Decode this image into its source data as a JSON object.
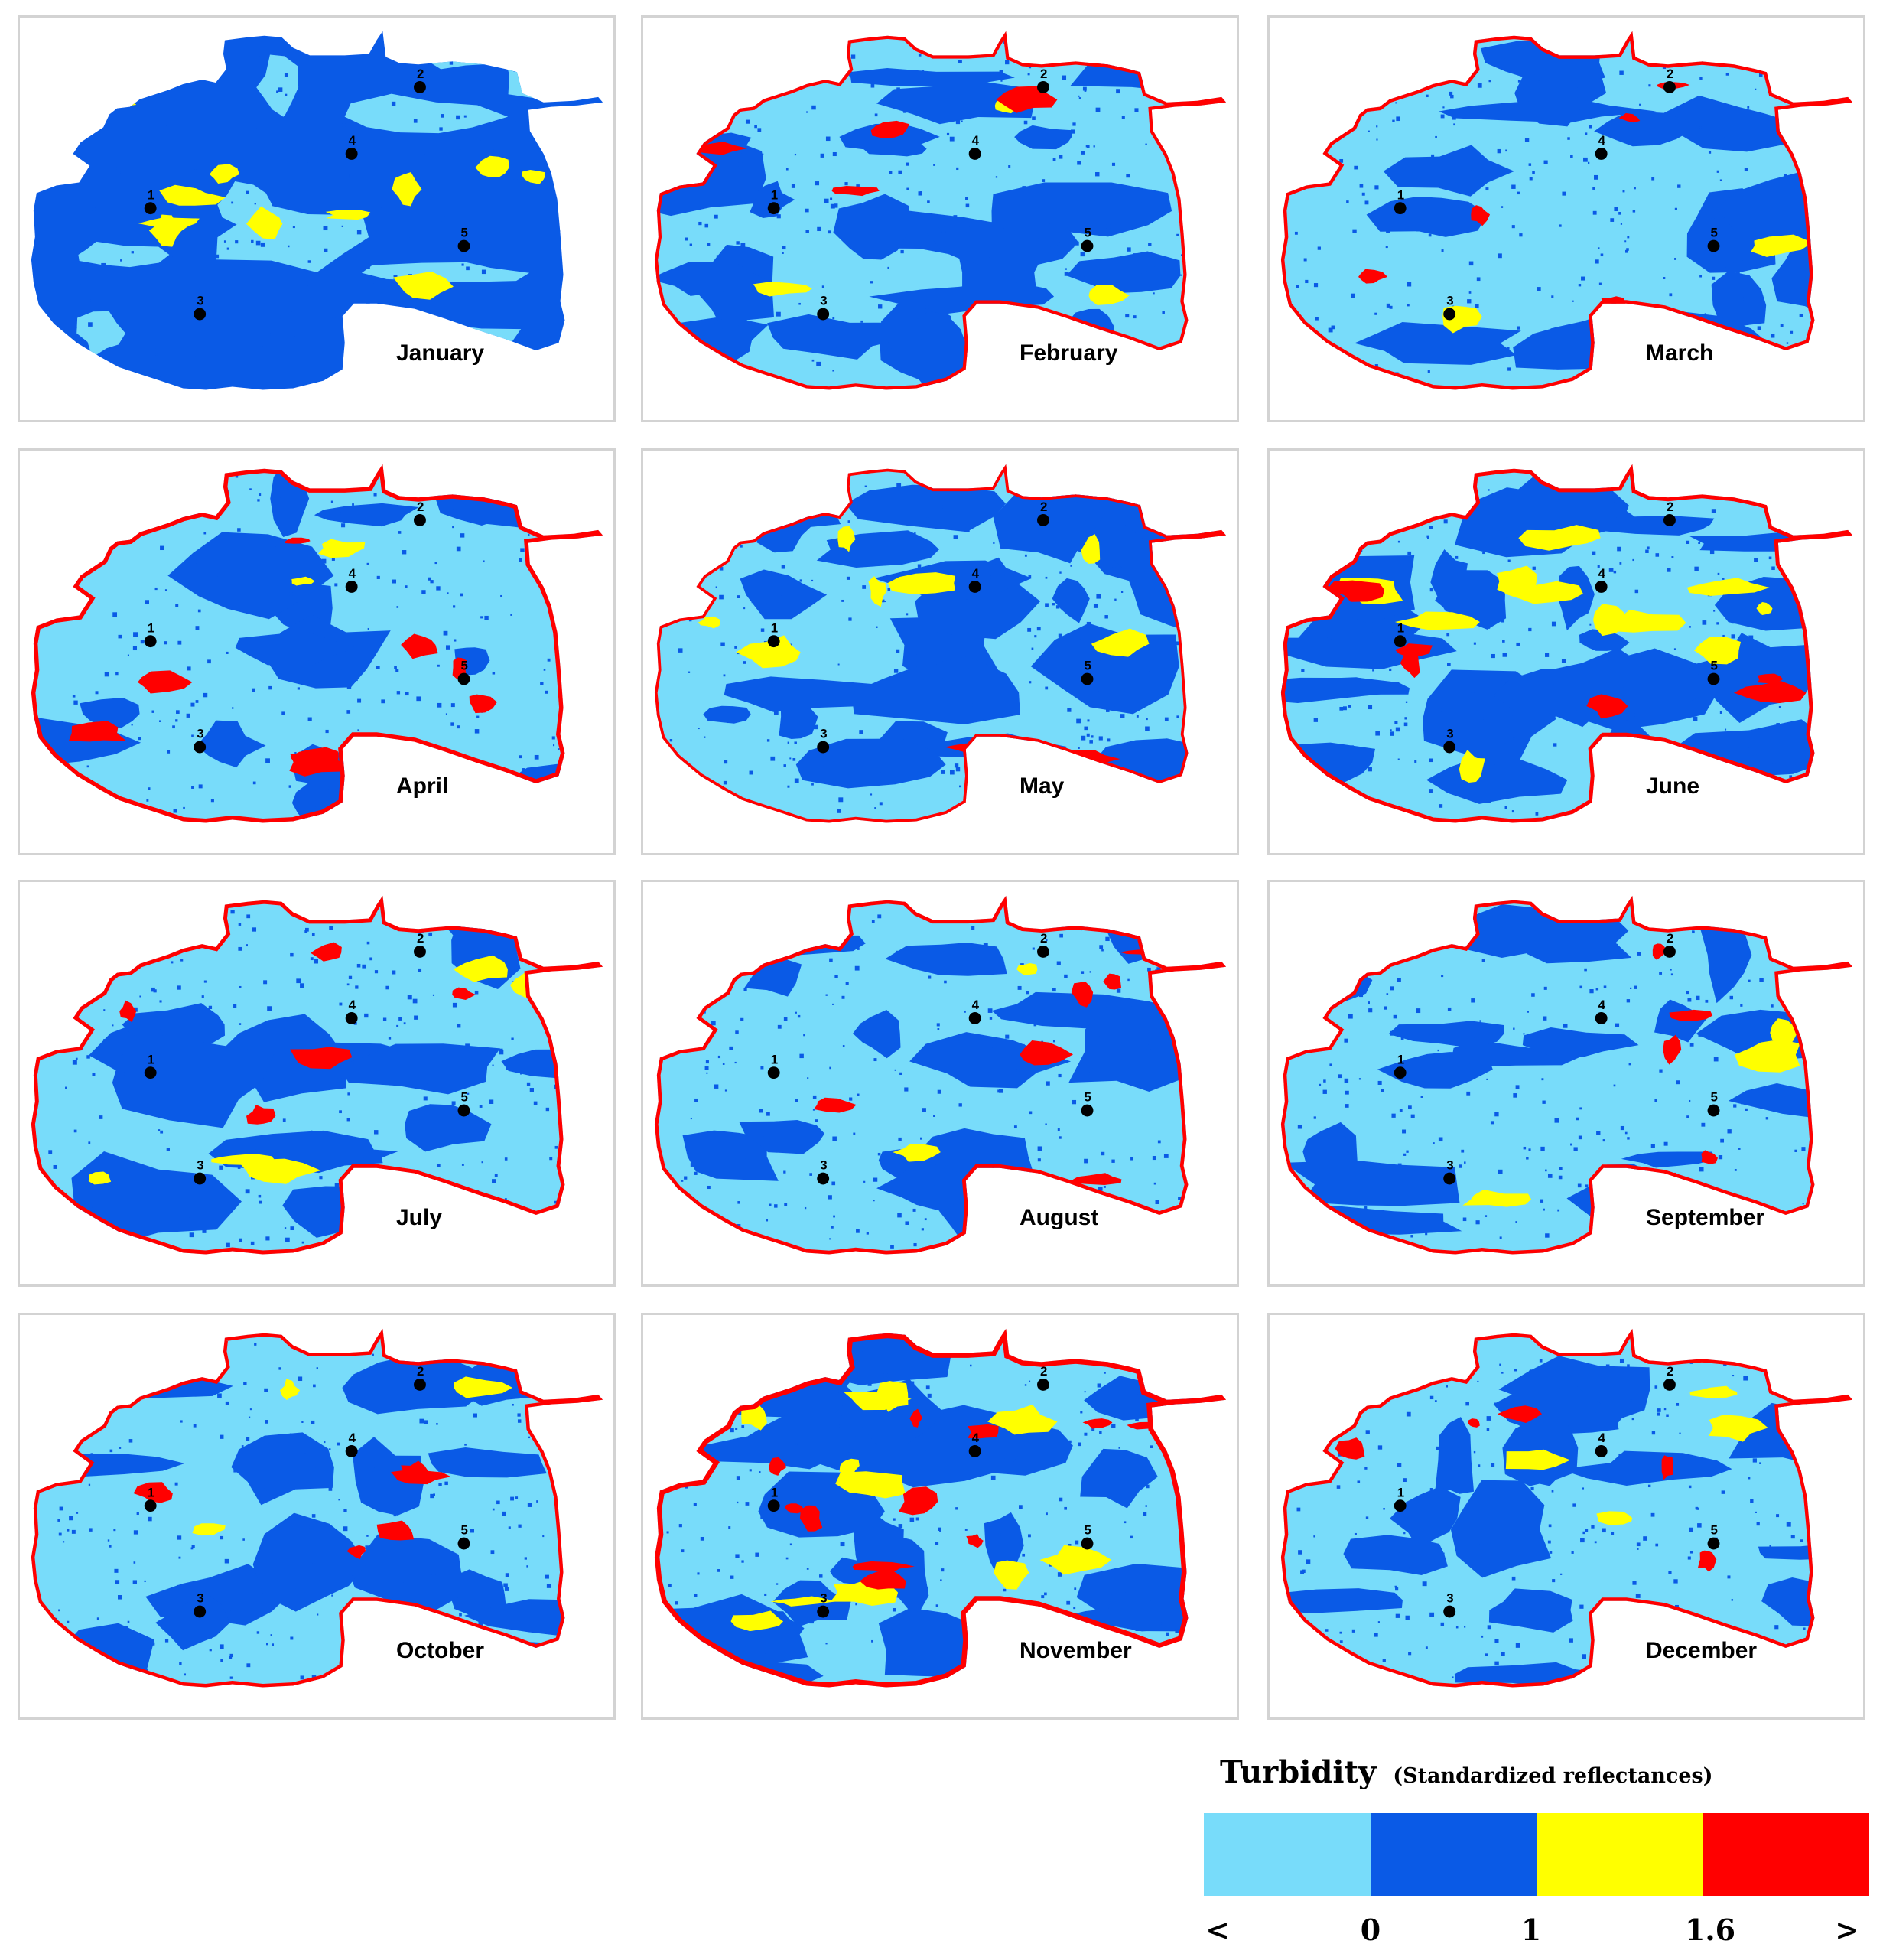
{
  "colors": {
    "class_lt0": "#78DCFA",
    "class_0_1": "#0A5AE6",
    "class_1_16": "#FFFF00",
    "class_gt16": "#FF0000",
    "station": "#000000",
    "panel_border": "#d3d3d3"
  },
  "stations": [
    "1",
    "2",
    "3",
    "4",
    "5"
  ],
  "months": [
    {
      "name": "January",
      "base": "dark",
      "yellow": 0.12,
      "red": 0.0
    },
    {
      "name": "February",
      "base": "mixed",
      "yellow": 0.03,
      "red": 0.05
    },
    {
      "name": "March",
      "base": "light",
      "yellow": 0.02,
      "red": 0.06
    },
    {
      "name": "April",
      "base": "light",
      "yellow": 0.02,
      "red": 0.1
    },
    {
      "name": "May",
      "base": "mixed",
      "yellow": 0.08,
      "red": 0.03
    },
    {
      "name": "June",
      "base": "mixed",
      "yellow": 0.12,
      "red": 0.08
    },
    {
      "name": "July",
      "base": "light",
      "yellow": 0.06,
      "red": 0.08
    },
    {
      "name": "August",
      "base": "light",
      "yellow": 0.02,
      "red": 0.07
    },
    {
      "name": "September",
      "base": "light",
      "yellow": 0.03,
      "red": 0.06
    },
    {
      "name": "October",
      "base": "light",
      "yellow": 0.03,
      "red": 0.06
    },
    {
      "name": "November",
      "base": "mixed",
      "yellow": 0.12,
      "red": 0.14
    },
    {
      "name": "December",
      "base": "light",
      "yellow": 0.04,
      "red": 0.06
    }
  ],
  "legend": {
    "title": "Turbidity",
    "subtitle": "(Standardized reflectances)",
    "ticks": [
      "<",
      "0",
      "1",
      "1.6",
      ">"
    ]
  }
}
